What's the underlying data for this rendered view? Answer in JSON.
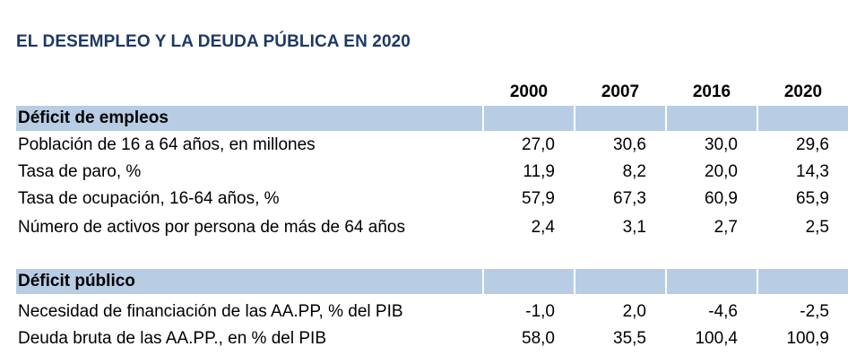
{
  "title": "EL DESEMPLEO Y LA DEUDA PÚBLICA EN 2020",
  "years": [
    "2000",
    "2007",
    "2016",
    "2020"
  ],
  "sections": [
    {
      "heading": "Déficit de empleos",
      "rows": [
        {
          "label": "Población de 16 a 64 años, en millones",
          "values": [
            "27,0",
            "30,6",
            "30,0",
            "29,6"
          ]
        },
        {
          "label": "Tasa de paro, %",
          "values": [
            "11,9",
            "8,2",
            "20,0",
            "14,3"
          ]
        },
        {
          "label": "Tasa de ocupación, 16-64 años, %",
          "values": [
            "57,9",
            "67,3",
            "60,9",
            "65,9"
          ]
        },
        {
          "label": "Número de activos por persona de más de 64 años",
          "values": [
            "2,4",
            "3,1",
            "2,7",
            "2,5"
          ]
        }
      ]
    },
    {
      "heading": "Déficit público",
      "rows": [
        {
          "label": "Necesidad de financiación de las AA.PP, % del PIB",
          "values": [
            "-1,0",
            "2,0",
            "-4,6",
            "-2,5"
          ]
        },
        {
          "label": "Deuda bruta de las AA.PP., en % del PIB",
          "values": [
            "58,0",
            "35,5",
            "100,4",
            "100,9"
          ]
        }
      ]
    }
  ],
  "colors": {
    "title": "#1f3864",
    "section_band": "#b8cce4"
  }
}
